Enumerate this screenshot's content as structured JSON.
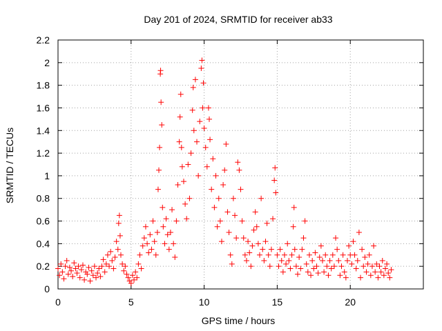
{
  "chart_data": {
    "type": "scatter",
    "title": "Day 201 of 2024, SRMTID for receiver ab33",
    "xlabel": "GPS time / hours",
    "ylabel": "SRMTID / TECUs",
    "xlim": [
      0,
      25
    ],
    "ylim": [
      0,
      2.2
    ],
    "x_ticks": [
      0,
      5,
      10,
      15,
      20
    ],
    "x_tick_labels": [
      "0",
      "5",
      "10",
      "15",
      "20"
    ],
    "y_ticks": [
      0,
      0.2,
      0.4,
      0.6,
      0.8,
      1,
      1.2,
      1.4,
      1.6,
      1.8,
      2,
      2.2
    ],
    "y_tick_labels": [
      "0",
      "0.2",
      "0.4",
      "0.6",
      "0.8",
      "1",
      "1.2",
      "1.4",
      "1.6",
      "1.8",
      "2",
      "2.2"
    ],
    "grid": true,
    "marker": "+",
    "marker_color": "#ff0000",
    "series": [
      {
        "name": "SRMTID",
        "points": [
          [
            0.0,
            0.18
          ],
          [
            0.1,
            0.12
          ],
          [
            0.2,
            0.22
          ],
          [
            0.3,
            0.15
          ],
          [
            0.4,
            0.09
          ],
          [
            0.5,
            0.2
          ],
          [
            0.6,
            0.25
          ],
          [
            0.7,
            0.13
          ],
          [
            0.8,
            0.19
          ],
          [
            0.9,
            0.16
          ],
          [
            1.0,
            0.11
          ],
          [
            1.1,
            0.23
          ],
          [
            1.2,
            0.18
          ],
          [
            1.3,
            0.14
          ],
          [
            1.4,
            0.2
          ],
          [
            1.5,
            0.1
          ],
          [
            1.6,
            0.17
          ],
          [
            1.7,
            0.21
          ],
          [
            1.8,
            0.08
          ],
          [
            1.9,
            0.15
          ],
          [
            2.0,
            0.13
          ],
          [
            2.1,
            0.19
          ],
          [
            2.2,
            0.07
          ],
          [
            2.3,
            0.16
          ],
          [
            2.4,
            0.12
          ],
          [
            2.5,
            0.2
          ],
          [
            2.6,
            0.1
          ],
          [
            2.7,
            0.14
          ],
          [
            2.8,
            0.18
          ],
          [
            2.9,
            0.11
          ],
          [
            3.0,
            0.2
          ],
          [
            3.1,
            0.26
          ],
          [
            3.2,
            0.15
          ],
          [
            3.3,
            0.22
          ],
          [
            3.4,
            0.3
          ],
          [
            3.5,
            0.2
          ],
          [
            3.6,
            0.33
          ],
          [
            3.7,
            0.25
          ],
          [
            3.8,
            0.18
          ],
          [
            3.9,
            0.28
          ],
          [
            4.0,
            0.42
          ],
          [
            4.1,
            0.35
          ],
          [
            4.15,
            0.58
          ],
          [
            4.2,
            0.65
          ],
          [
            4.25,
            0.47
          ],
          [
            4.3,
            0.3
          ],
          [
            4.4,
            0.22
          ],
          [
            4.5,
            0.16
          ],
          [
            4.6,
            0.2
          ],
          [
            4.7,
            0.13
          ],
          [
            4.8,
            0.1
          ],
          [
            4.9,
            0.07
          ],
          [
            5.0,
            0.05
          ],
          [
            5.1,
            0.12
          ],
          [
            5.2,
            0.08
          ],
          [
            5.3,
            0.15
          ],
          [
            5.4,
            0.1
          ],
          [
            5.5,
            0.22
          ],
          [
            5.6,
            0.3
          ],
          [
            5.7,
            0.18
          ],
          [
            5.8,
            0.38
          ],
          [
            5.9,
            0.45
          ],
          [
            6.0,
            0.55
          ],
          [
            6.1,
            0.4
          ],
          [
            6.2,
            0.32
          ],
          [
            6.3,
            0.48
          ],
          [
            6.4,
            0.35
          ],
          [
            6.5,
            0.6
          ],
          [
            6.6,
            0.42
          ],
          [
            6.7,
            0.3
          ],
          [
            6.8,
            0.5
          ],
          [
            6.85,
            0.88
          ],
          [
            6.9,
            1.05
          ],
          [
            6.95,
            1.25
          ],
          [
            7.0,
            1.9
          ],
          [
            7.02,
            1.93
          ],
          [
            7.05,
            1.65
          ],
          [
            7.1,
            1.45
          ],
          [
            7.15,
            0.72
          ],
          [
            7.2,
            0.55
          ],
          [
            7.3,
            0.4
          ],
          [
            7.4,
            0.62
          ],
          [
            7.5,
            0.48
          ],
          [
            7.6,
            0.35
          ],
          [
            7.7,
            0.5
          ],
          [
            7.8,
            0.7
          ],
          [
            7.9,
            0.4
          ],
          [
            8.0,
            0.28
          ],
          [
            8.1,
            0.6
          ],
          [
            8.2,
            0.92
          ],
          [
            8.3,
            1.3
          ],
          [
            8.35,
            1.52
          ],
          [
            8.4,
            1.72
          ],
          [
            8.45,
            1.25
          ],
          [
            8.5,
            1.08
          ],
          [
            8.6,
            0.95
          ],
          [
            8.7,
            0.75
          ],
          [
            8.8,
            0.62
          ],
          [
            8.9,
            1.1
          ],
          [
            9.0,
            0.8
          ],
          [
            9.1,
            1.2
          ],
          [
            9.2,
            1.58
          ],
          [
            9.25,
            1.78
          ],
          [
            9.3,
            1.4
          ],
          [
            9.4,
            1.85
          ],
          [
            9.5,
            1.3
          ],
          [
            9.6,
            1.0
          ],
          [
            9.7,
            1.48
          ],
          [
            9.8,
            1.95
          ],
          [
            9.85,
            2.02
          ],
          [
            9.9,
            1.6
          ],
          [
            9.95,
            1.82
          ],
          [
            10.0,
            1.42
          ],
          [
            10.1,
            1.25
          ],
          [
            10.2,
            1.08
          ],
          [
            10.3,
            1.6
          ],
          [
            10.35,
            1.5
          ],
          [
            10.4,
            1.32
          ],
          [
            10.5,
            0.88
          ],
          [
            10.6,
            1.15
          ],
          [
            10.7,
            0.72
          ],
          [
            10.8,
            1.0
          ],
          [
            10.9,
            0.55
          ],
          [
            11.0,
            0.8
          ],
          [
            11.1,
            0.6
          ],
          [
            11.2,
            0.42
          ],
          [
            11.3,
            0.92
          ],
          [
            11.4,
            1.05
          ],
          [
            11.5,
            1.28
          ],
          [
            11.6,
            0.68
          ],
          [
            11.7,
            0.5
          ],
          [
            11.8,
            0.3
          ],
          [
            11.9,
            0.22
          ],
          [
            12.0,
            0.8
          ],
          [
            12.1,
            0.65
          ],
          [
            12.2,
            0.45
          ],
          [
            12.3,
            1.12
          ],
          [
            12.4,
            1.05
          ],
          [
            12.5,
            0.88
          ],
          [
            12.6,
            0.6
          ],
          [
            12.7,
            0.45
          ],
          [
            12.8,
            0.3
          ],
          [
            12.9,
            0.25
          ],
          [
            13.0,
            0.42
          ],
          [
            13.1,
            0.32
          ],
          [
            13.2,
            0.2
          ],
          [
            13.3,
            0.38
          ],
          [
            13.4,
            0.52
          ],
          [
            13.5,
            0.68
          ],
          [
            13.6,
            0.55
          ],
          [
            13.7,
            0.4
          ],
          [
            13.8,
            0.3
          ],
          [
            13.9,
            0.8
          ],
          [
            14.0,
            0.35
          ],
          [
            14.1,
            0.25
          ],
          [
            14.2,
            0.42
          ],
          [
            14.3,
            0.58
          ],
          [
            14.4,
            0.3
          ],
          [
            14.5,
            0.2
          ],
          [
            14.6,
            0.35
          ],
          [
            14.7,
            0.62
          ],
          [
            14.8,
            0.96
          ],
          [
            14.85,
            1.07
          ],
          [
            14.9,
            0.85
          ],
          [
            15.0,
            0.3
          ],
          [
            15.1,
            0.2
          ],
          [
            15.2,
            0.35
          ],
          [
            15.3,
            0.25
          ],
          [
            15.4,
            0.15
          ],
          [
            15.5,
            0.3
          ],
          [
            15.6,
            0.22
          ],
          [
            15.7,
            0.4
          ],
          [
            15.8,
            0.25
          ],
          [
            15.9,
            0.18
          ],
          [
            16.0,
            0.3
          ],
          [
            16.1,
            0.55
          ],
          [
            16.15,
            0.72
          ],
          [
            16.2,
            0.35
          ],
          [
            16.3,
            0.2
          ],
          [
            16.4,
            0.13
          ],
          [
            16.5,
            0.28
          ],
          [
            16.6,
            0.18
          ],
          [
            16.7,
            0.35
          ],
          [
            16.8,
            0.45
          ],
          [
            16.9,
            0.6
          ],
          [
            17.0,
            0.22
          ],
          [
            17.1,
            0.15
          ],
          [
            17.2,
            0.3
          ],
          [
            17.3,
            0.12
          ],
          [
            17.4,
            0.25
          ],
          [
            17.5,
            0.18
          ],
          [
            17.6,
            0.32
          ],
          [
            17.7,
            0.2
          ],
          [
            17.8,
            0.14
          ],
          [
            17.9,
            0.28
          ],
          [
            18.0,
            0.38
          ],
          [
            18.1,
            0.25
          ],
          [
            18.2,
            0.15
          ],
          [
            18.3,
            0.3
          ],
          [
            18.4,
            0.2
          ],
          [
            18.5,
            0.12
          ],
          [
            18.6,
            0.25
          ],
          [
            18.7,
            0.18
          ],
          [
            18.8,
            0.3
          ],
          [
            18.9,
            0.2
          ],
          [
            19.0,
            0.45
          ],
          [
            19.1,
            0.35
          ],
          [
            19.2,
            0.25
          ],
          [
            19.3,
            0.12
          ],
          [
            19.4,
            0.2
          ],
          [
            19.5,
            0.3
          ],
          [
            19.6,
            0.15
          ],
          [
            19.7,
            0.1
          ],
          [
            19.8,
            0.25
          ],
          [
            19.9,
            0.38
          ],
          [
            20.0,
            0.3
          ],
          [
            20.1,
            0.22
          ],
          [
            20.2,
            0.42
          ],
          [
            20.3,
            0.3
          ],
          [
            20.4,
            0.18
          ],
          [
            20.5,
            0.25
          ],
          [
            20.6,
            0.5
          ],
          [
            20.7,
            0.1
          ],
          [
            20.8,
            0.35
          ],
          [
            20.9,
            0.2
          ],
          [
            21.0,
            0.28
          ],
          [
            21.1,
            0.15
          ],
          [
            21.2,
            0.22
          ],
          [
            21.3,
            0.3
          ],
          [
            21.4,
            0.12
          ],
          [
            21.5,
            0.2
          ],
          [
            21.6,
            0.38
          ],
          [
            21.7,
            0.15
          ],
          [
            21.8,
            0.22
          ],
          [
            21.9,
            0.1
          ],
          [
            22.0,
            0.2
          ],
          [
            22.1,
            0.15
          ],
          [
            22.2,
            0.25
          ],
          [
            22.3,
            0.12
          ],
          [
            22.4,
            0.18
          ],
          [
            22.5,
            0.22
          ],
          [
            22.6,
            0.14
          ],
          [
            22.7,
            0.1
          ],
          [
            22.8,
            0.17
          ]
        ]
      }
    ]
  }
}
